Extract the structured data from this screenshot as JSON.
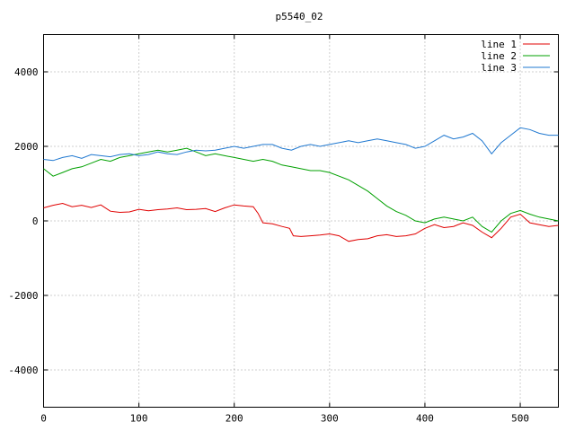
{
  "chart_data": {
    "type": "line",
    "title": "p5540_02",
    "xlim": [
      0,
      540
    ],
    "ylim": [
      -5000,
      5000
    ],
    "xticks": [
      0,
      100,
      200,
      300,
      400,
      500
    ],
    "yticks": [
      -4000,
      -2000,
      0,
      2000,
      4000
    ],
    "grid": true,
    "legend_position": "top-right",
    "series": [
      {
        "name": "line 1",
        "color": "#e00000",
        "x": [
          0,
          10,
          20,
          30,
          40,
          50,
          60,
          70,
          80,
          90,
          100,
          110,
          120,
          130,
          140,
          150,
          160,
          170,
          180,
          190,
          200,
          210,
          220,
          225,
          230,
          240,
          250,
          258,
          262,
          270,
          280,
          290,
          300,
          310,
          320,
          330,
          340,
          350,
          360,
          370,
          380,
          390,
          400,
          410,
          420,
          430,
          440,
          450,
          460,
          470,
          480,
          490,
          500,
          510,
          520,
          530,
          540
        ],
        "y": [
          350,
          420,
          470,
          380,
          420,
          360,
          430,
          260,
          230,
          240,
          310,
          270,
          300,
          320,
          350,
          300,
          310,
          330,
          250,
          350,
          430,
          400,
          380,
          200,
          -50,
          -80,
          -150,
          -200,
          -400,
          -420,
          -400,
          -380,
          -350,
          -400,
          -550,
          -500,
          -480,
          -400,
          -370,
          -420,
          -400,
          -350,
          -200,
          -100,
          -180,
          -150,
          -50,
          -120,
          -300,
          -450,
          -200,
          100,
          180,
          -50,
          -100,
          -150,
          -120
        ]
      },
      {
        "name": "line 2",
        "color": "#00a000",
        "x": [
          0,
          10,
          20,
          30,
          40,
          50,
          60,
          70,
          80,
          90,
          100,
          110,
          120,
          130,
          140,
          150,
          160,
          170,
          180,
          190,
          200,
          210,
          220,
          230,
          240,
          250,
          260,
          270,
          280,
          290,
          300,
          310,
          320,
          330,
          340,
          350,
          360,
          370,
          380,
          390,
          400,
          410,
          420,
          430,
          440,
          450,
          460,
          470,
          480,
          490,
          500,
          510,
          520,
          530,
          540
        ],
        "y": [
          1400,
          1200,
          1300,
          1400,
          1450,
          1550,
          1650,
          1600,
          1700,
          1750,
          1800,
          1850,
          1900,
          1850,
          1900,
          1950,
          1850,
          1750,
          1800,
          1750,
          1700,
          1650,
          1600,
          1650,
          1600,
          1500,
          1450,
          1400,
          1350,
          1350,
          1300,
          1200,
          1100,
          950,
          800,
          600,
          400,
          250,
          150,
          0,
          -50,
          50,
          100,
          50,
          0,
          100,
          -150,
          -300,
          0,
          200,
          280,
          180,
          100,
          50,
          0
        ]
      },
      {
        "name": "line 3",
        "color": "#1f78d0",
        "x": [
          0,
          10,
          20,
          30,
          40,
          50,
          60,
          70,
          80,
          90,
          100,
          110,
          120,
          130,
          140,
          150,
          160,
          170,
          180,
          190,
          200,
          210,
          220,
          230,
          240,
          250,
          260,
          270,
          280,
          290,
          300,
          310,
          320,
          330,
          340,
          350,
          360,
          370,
          380,
          390,
          400,
          410,
          420,
          430,
          440,
          450,
          460,
          470,
          480,
          490,
          500,
          510,
          520,
          530,
          540
        ],
        "y": [
          1650,
          1620,
          1700,
          1750,
          1680,
          1780,
          1750,
          1720,
          1780,
          1800,
          1750,
          1780,
          1850,
          1800,
          1780,
          1850,
          1900,
          1880,
          1900,
          1950,
          2000,
          1950,
          2000,
          2050,
          2050,
          1950,
          1900,
          2000,
          2050,
          2000,
          2050,
          2100,
          2150,
          2100,
          2150,
          2200,
          2150,
          2100,
          2050,
          1950,
          2000,
          2150,
          2300,
          2200,
          2250,
          2350,
          2150,
          1800,
          2100,
          2300,
          2500,
          2450,
          2350,
          2300,
          2300
        ]
      }
    ]
  }
}
